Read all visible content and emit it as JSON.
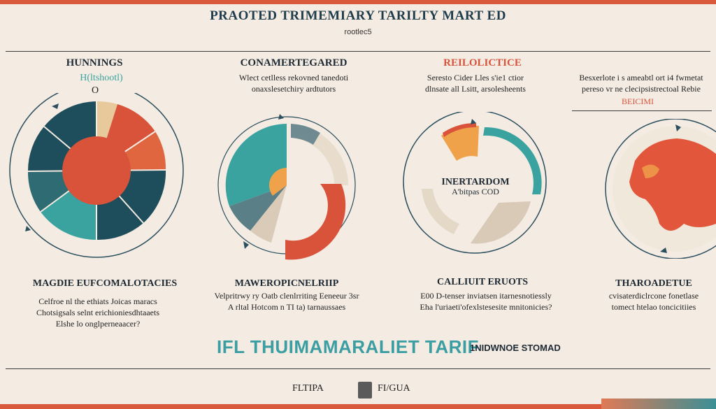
{
  "header": {
    "title": "PRAOTED TRIMEMIARY TARILTY MART ED",
    "subtitle": "rootlec5"
  },
  "columns": [
    {
      "heading": "HUNNINGS",
      "sub": "H(ltshootl)",
      "badge": "O"
    },
    {
      "heading": "CONAMERTEGARED",
      "sub_lines": [
        "Wlect cetlless rekovned tanedoti",
        "onaxslesetchiry ardtutors"
      ]
    },
    {
      "heading": "REILOLICTICE",
      "sub_lines": [
        "Seresto Cider Lles s'ie1 ctior",
        "dlnsate all Lsitt, arsolesheents"
      ],
      "center_title": "INERTARDOM",
      "center_sub": "A'bitpas COD"
    },
    {
      "sub_lines": [
        "Besxerlote i s ameabtl ort i4 fwmetat",
        "pereso vr ne clecipsistrectoal Rebie"
      ],
      "accent": "BEICIMI"
    }
  ],
  "sections": [
    {
      "heading": "MAGDIE EUFCOMALOTACIES",
      "lines": [
        "Celfroe nl the ethiats Joicas maracs",
        "Chotsigsals selnt erichioniesdhtaaets",
        "Elshe lo onglperneaacer?"
      ]
    },
    {
      "heading": "MAWEROPICNELRIIP",
      "lines": [
        "Velpritrwy ry Oatb clenlrriting Eeneeur 3sr",
        "A rltal Hotcom n TI ta) tarnaussaes"
      ]
    },
    {
      "heading": "CALLIUIT ERUOTS",
      "lines": [
        "E00 D-tenser inviatsen itarnesnotiessly",
        "Eha l'uriaeti'ofexlstesesite mnitonicies?"
      ]
    },
    {
      "heading": "THAROADETUE",
      "lines": [
        "cvisaterdiclrcone fonetlase",
        "tomect htelao toncicitiies"
      ]
    }
  ],
  "tagline": "IFL THUIMAMARALIET TARIF",
  "tagline_right": "1NIDWNOE STOMAD",
  "footer": {
    "left_label": "FLTIPA",
    "right_label": "FI/GUA"
  },
  "colors": {
    "teal": "#3aa3a0",
    "dark_teal": "#1e4e5c",
    "orange_red": "#d9533b",
    "amber": "#f0a24a",
    "sand": "#e4d8c6",
    "cream": "#f4ebe2"
  }
}
